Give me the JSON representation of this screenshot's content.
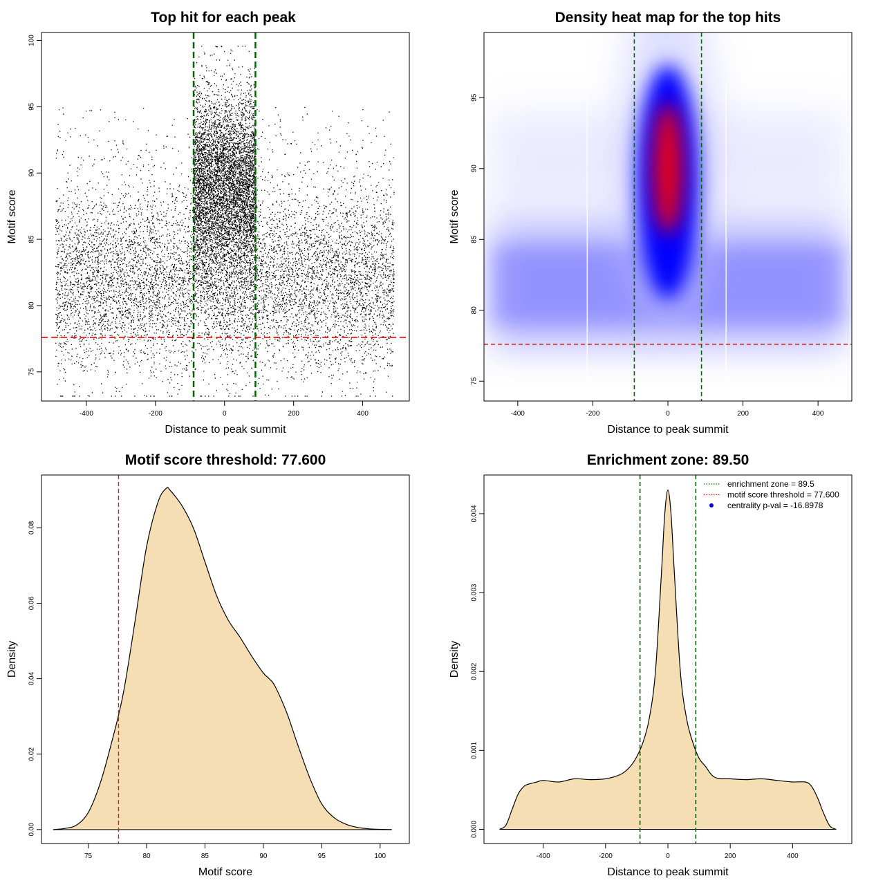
{
  "chart_data": [
    {
      "type": "scatter",
      "title": "Top hit for each peak",
      "xlabel": "Distance to peak summit",
      "ylabel": "Motif score",
      "xlim": [
        -530,
        535
      ],
      "ylim": [
        72.8,
        100.6
      ],
      "x_ticks": [
        -400,
        -200,
        0,
        200,
        400
      ],
      "y_ticks": [
        75,
        80,
        85,
        90,
        95,
        100
      ],
      "enrichment_zone": [
        -89.5,
        89.5
      ],
      "score_threshold": 77.6,
      "point_distribution": [
        {
          "x_range": [
            -490,
            490
          ],
          "y_mean": 82,
          "y_sd": 3.4,
          "share": 0.58
        },
        {
          "x_range": [
            -90,
            90
          ],
          "y_mean": 89,
          "y_sd": 3.6,
          "share": 0.42
        }
      ]
    },
    {
      "type": "heatmap",
      "title": "Density heat map for the top hits",
      "xlabel": "Distance to peak summit",
      "ylabel": "Motif score",
      "xlim": [
        -490,
        490
      ],
      "ylim": [
        73.6,
        99.6
      ],
      "x_ticks": [
        -400,
        -200,
        0,
        200,
        400
      ],
      "y_ticks": [
        75,
        80,
        85,
        90,
        95
      ],
      "enrichment_zone": [
        -89.5,
        89.5
      ],
      "score_threshold": 77.6,
      "density_peak": {
        "x": 0,
        "y": 90
      },
      "colors": [
        "#ffffff",
        "#0000ff",
        "#ff0000"
      ]
    },
    {
      "type": "area",
      "title": "Motif score threshold: 77.600",
      "xlabel": "Motif score",
      "ylabel": "Density",
      "xlim": [
        71,
        102.5
      ],
      "ylim": [
        -0.0037,
        0.094
      ],
      "x_ticks": [
        75,
        80,
        85,
        90,
        95,
        100
      ],
      "y_ticks": [
        0.0,
        0.02,
        0.04,
        0.06,
        0.08
      ],
      "y_tick_labels": [
        "0.00",
        "0.02",
        "0.04",
        "0.06",
        "0.08"
      ],
      "threshold": 77.6,
      "x": [
        72,
        73,
        74,
        75,
        76,
        77,
        78,
        79,
        80,
        81,
        81.7,
        82,
        83,
        84,
        85,
        86,
        87,
        88,
        89,
        90,
        90.5,
        91,
        92,
        93,
        94,
        95,
        96,
        97,
        98,
        99,
        100,
        101
      ],
      "y": [
        0.0,
        0.0003,
        0.0012,
        0.0045,
        0.012,
        0.023,
        0.036,
        0.055,
        0.075,
        0.087,
        0.0905,
        0.09,
        0.086,
        0.08,
        0.071,
        0.062,
        0.0555,
        0.051,
        0.046,
        0.0415,
        0.04,
        0.038,
        0.031,
        0.022,
        0.0135,
        0.0068,
        0.0033,
        0.0015,
        0.0006,
        0.0002,
        5e-05,
        0.0
      ],
      "fill": "#f5deb3"
    },
    {
      "type": "area",
      "title": "Enrichment zone: 89.50",
      "xlabel": "Distance to peak summit",
      "ylabel": "Density",
      "xlim": [
        -590,
        590
      ],
      "ylim": [
        -0.00018,
        0.00449
      ],
      "x_ticks": [
        -400,
        -200,
        0,
        200,
        400
      ],
      "y_ticks": [
        0.0,
        0.001,
        0.002,
        0.003,
        0.004
      ],
      "y_tick_labels": [
        "0.000",
        "0.001",
        "0.002",
        "0.003",
        "0.004"
      ],
      "enrichment_zone": [
        -89.5,
        89.5
      ],
      "x": [
        -540,
        -520,
        -500,
        -480,
        -460,
        -440,
        -420,
        -400,
        -350,
        -300,
        -250,
        -200,
        -150,
        -120,
        -100,
        -80,
        -60,
        -40,
        -20,
        -10,
        0,
        10,
        20,
        40,
        60,
        80,
        100,
        120,
        150,
        200,
        250,
        300,
        350,
        400,
        440,
        460,
        480,
        500,
        520,
        540
      ],
      "y": [
        0.0,
        5e-05,
        0.00025,
        0.00045,
        0.00055,
        0.00058,
        0.0006,
        0.00062,
        0.0006,
        0.00064,
        0.00063,
        0.00064,
        0.0007,
        0.0008,
        0.00092,
        0.0011,
        0.0014,
        0.002,
        0.0033,
        0.004,
        0.0043,
        0.004,
        0.0033,
        0.002,
        0.0014,
        0.0011,
        0.0009,
        0.0008,
        0.00066,
        0.00064,
        0.00063,
        0.00064,
        0.00062,
        0.0006,
        0.0006,
        0.00055,
        0.0004,
        0.0002,
        4e-05,
        0.0
      ],
      "fill": "#f5deb3",
      "legend": [
        {
          "label": "enrichment zone = 89.5",
          "color": "#006400",
          "style": "dotted-line"
        },
        {
          "label": "motif score threshold = 77.600",
          "color": "#ff0000",
          "style": "dotted-line"
        },
        {
          "label": "centrality p-val = -16.8978",
          "color": "#0000ff",
          "style": "dot"
        }
      ],
      "legend_position": "top-right"
    }
  ]
}
